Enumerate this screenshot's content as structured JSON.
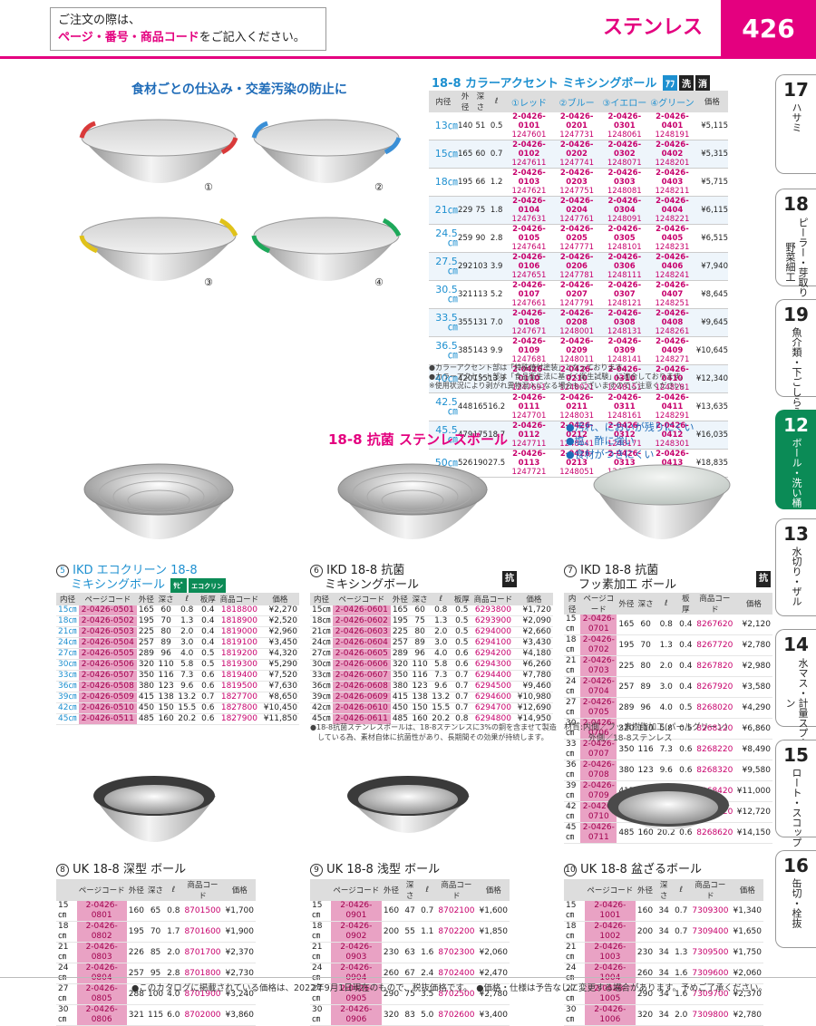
{
  "header": {
    "notice_line1": "ご注文の際は、",
    "notice_line2_red": "ページ・番号・商品コード",
    "notice_line2_rest": "をご記入ください。",
    "category": "ステンレス",
    "page_number": "426"
  },
  "side_tabs": [
    {
      "num": "17",
      "label": "ハサミ"
    },
    {
      "num": "18",
      "label": "ピーラー・芽取り・野菜細工"
    },
    {
      "num": "19",
      "label": "魚介類・下ごしらえ"
    },
    {
      "num": "12",
      "label": "ボール・洗い桶"
    },
    {
      "num": "13",
      "label": "水切り・ザル"
    },
    {
      "num": "14",
      "label": "水マス・計量スプーン"
    },
    {
      "num": "15",
      "label": "ロート・スコップ"
    },
    {
      "num": "16",
      "label": "缶切・栓抜"
    }
  ],
  "section1": {
    "tagline": "食材ごとの仕込み・交差汚染の防止に",
    "title": "18-8 カラーアクセント ミキシングボール",
    "badges": [
      "ｱﾌ",
      "洗",
      "消"
    ],
    "bowl_labels": [
      "①",
      "②",
      "③",
      "④"
    ],
    "accent_colors": [
      "#d93a3a",
      "#3a8fd6",
      "#e0c21a",
      "#1ea85a"
    ],
    "headers": [
      "内径",
      "外径",
      "深さ",
      "ℓ",
      "①レッド",
      "②ブルー",
      "③イエロー",
      "④グリーン",
      "価格"
    ],
    "rows": [
      {
        "size": "13㎝",
        "outer": "140",
        "depth": "51",
        "vol": "0.5",
        "c": [
          [
            "2-0426-0101",
            "1247601"
          ],
          [
            "2-0426-0201",
            "1247731"
          ],
          [
            "2-0426-0301",
            "1248061"
          ],
          [
            "2-0426-0401",
            "1248191"
          ]
        ],
        "price": "¥5,115"
      },
      {
        "size": "15㎝",
        "outer": "165",
        "depth": "60",
        "vol": "0.7",
        "c": [
          [
            "2-0426-0102",
            "1247611"
          ],
          [
            "2-0426-0202",
            "1247741"
          ],
          [
            "2-0426-0302",
            "1248071"
          ],
          [
            "2-0426-0402",
            "1248201"
          ]
        ],
        "price": "¥5,315"
      },
      {
        "size": "18㎝",
        "outer": "195",
        "depth": "66",
        "vol": "1.2",
        "c": [
          [
            "2-0426-0103",
            "1247621"
          ],
          [
            "2-0426-0203",
            "1247751"
          ],
          [
            "2-0426-0303",
            "1248081"
          ],
          [
            "2-0426-0403",
            "1248211"
          ]
        ],
        "price": "¥5,715"
      },
      {
        "size": "21㎝",
        "outer": "229",
        "depth": "75",
        "vol": "1.8",
        "c": [
          [
            "2-0426-0104",
            "1247631"
          ],
          [
            "2-0426-0204",
            "1247761"
          ],
          [
            "2-0426-0304",
            "1248091"
          ],
          [
            "2-0426-0404",
            "1248221"
          ]
        ],
        "price": "¥6,115"
      },
      {
        "size": "24.5㎝",
        "outer": "259",
        "depth": "90",
        "vol": "2.8",
        "c": [
          [
            "2-0426-0105",
            "1247641"
          ],
          [
            "2-0426-0205",
            "1247771"
          ],
          [
            "2-0426-0305",
            "1248101"
          ],
          [
            "2-0426-0405",
            "1248231"
          ]
        ],
        "price": "¥6,515"
      },
      {
        "size": "27.5㎝",
        "outer": "292",
        "depth": "103",
        "vol": "3.9",
        "c": [
          [
            "2-0426-0106",
            "1247651"
          ],
          [
            "2-0426-0206",
            "1247781"
          ],
          [
            "2-0426-0306",
            "1248111"
          ],
          [
            "2-0426-0406",
            "1248241"
          ]
        ],
        "price": "¥7,940"
      },
      {
        "size": "30.5㎝",
        "outer": "321",
        "depth": "113",
        "vol": "5.2",
        "c": [
          [
            "2-0426-0107",
            "1247661"
          ],
          [
            "2-0426-0207",
            "1247791"
          ],
          [
            "2-0426-0307",
            "1248121"
          ],
          [
            "2-0426-0407",
            "1248251"
          ]
        ],
        "price": "¥8,645"
      },
      {
        "size": "33.5㎝",
        "outer": "355",
        "depth": "131",
        "vol": "7.0",
        "c": [
          [
            "2-0426-0108",
            "1247671"
          ],
          [
            "2-0426-0208",
            "1248001"
          ],
          [
            "2-0426-0308",
            "1248131"
          ],
          [
            "2-0426-0408",
            "1248261"
          ]
        ],
        "price": "¥9,645"
      },
      {
        "size": "36.5㎝",
        "outer": "385",
        "depth": "143",
        "vol": "9.9",
        "c": [
          [
            "2-0426-0109",
            "1247681"
          ],
          [
            "2-0426-0209",
            "1248011"
          ],
          [
            "2-0426-0309",
            "1248141"
          ],
          [
            "2-0426-0409",
            "1248271"
          ]
        ],
        "price": "¥10,645"
      },
      {
        "size": "40㎝",
        "outer": "420",
        "depth": "155",
        "vol": "13.3",
        "c": [
          [
            "2-0426-0110",
            "1247691"
          ],
          [
            "2-0426-0210",
            "1248021"
          ],
          [
            "2-0426-0310",
            "1248151"
          ],
          [
            "2-0426-0410",
            "1248281"
          ]
        ],
        "price": "¥12,340"
      },
      {
        "size": "42.5㎝",
        "outer": "448",
        "depth": "165",
        "vol": "16.2",
        "c": [
          [
            "2-0426-0111",
            "1247701"
          ],
          [
            "2-0426-0211",
            "1248031"
          ],
          [
            "2-0426-0311",
            "1248161"
          ],
          [
            "2-0426-0411",
            "1248291"
          ]
        ],
        "price": "¥13,635"
      },
      {
        "size": "45.5㎝",
        "outer": "479",
        "depth": "175",
        "vol": "18.7",
        "c": [
          [
            "2-0426-0112",
            "1247711"
          ],
          [
            "2-0426-0212",
            "1248041"
          ],
          [
            "2-0426-0312",
            "1248171"
          ],
          [
            "2-0426-0412",
            "1248301"
          ]
        ],
        "price": "¥16,035"
      },
      {
        "size": "50㎝",
        "outer": "526",
        "depth": "190",
        "vol": "27.5",
        "c": [
          [
            "2-0426-0113",
            "1247721"
          ],
          [
            "2-0426-0213",
            "1248051"
          ],
          [
            "2-0426-0313",
            "1248181"
          ],
          [
            "2-0426-0413",
            "1248311"
          ]
        ],
        "price": "¥18,835"
      }
    ],
    "notes": [
      "●カラーアクセント部は「特殊焼付塗装」となっております。",
      "●カラーアクセント部は「食品衛生法に基づく衛生試験」に適合しております。",
      "※使用状況により剥がれ異物混入になる場合もございますのでご注意ください。"
    ]
  },
  "section2": {
    "title": "18-8 抗菌 ステンレスボール",
    "bullets": [
      "●汚れ、においが残りにくい",
      "●塩、酢に強い",
      "●食材がつきにくい"
    ]
  },
  "products": {
    "p5": {
      "num": "5",
      "title1": "IKD エコクリーン 18-8",
      "title2": "ミキシングボール",
      "badges": [
        "ｻﾋﾞ",
        "エコクリン"
      ],
      "headers": [
        "内径",
        "ページコード",
        "外径",
        "深さ",
        "ℓ",
        "板厚",
        "商品コード",
        "価格"
      ],
      "rows": [
        [
          "15㎝",
          "2-0426-0501",
          "165",
          "60",
          "0.8",
          "0.4",
          "1818800",
          "¥2,270"
        ],
        [
          "18㎝",
          "2-0426-0502",
          "195",
          "70",
          "1.3",
          "0.4",
          "1818900",
          "¥2,520"
        ],
        [
          "21㎝",
          "2-0426-0503",
          "225",
          "80",
          "2.0",
          "0.4",
          "1819000",
          "¥2,960"
        ],
        [
          "24㎝",
          "2-0426-0504",
          "257",
          "89",
          "3.0",
          "0.4",
          "1819100",
          "¥3,450"
        ],
        [
          "27㎝",
          "2-0426-0505",
          "289",
          "96",
          "4.0",
          "0.5",
          "1819200",
          "¥4,320"
        ],
        [
          "30㎝",
          "2-0426-0506",
          "320",
          "110",
          "5.8",
          "0.5",
          "1819300",
          "¥5,290"
        ],
        [
          "33㎝",
          "2-0426-0507",
          "350",
          "116",
          "7.3",
          "0.6",
          "1819400",
          "¥7,520"
        ],
        [
          "36㎝",
          "2-0426-0508",
          "380",
          "123",
          "9.6",
          "0.6",
          "1819500",
          "¥7,630"
        ],
        [
          "39㎝",
          "2-0426-0509",
          "415",
          "138",
          "13.2",
          "0.7",
          "1827700",
          "¥8,650"
        ],
        [
          "42㎝",
          "2-0426-0510",
          "450",
          "150",
          "15.5",
          "0.6",
          "1827800",
          "¥10,450"
        ],
        [
          "45㎝",
          "2-0426-0511",
          "485",
          "160",
          "20.2",
          "0.6",
          "1827900",
          "¥11,850"
        ]
      ]
    },
    "p6": {
      "num": "6",
      "title1": "IKD 18-8 抗菌",
      "title2": "ミキシングボール",
      "badges": [
        "抗"
      ],
      "headers": [
        "内径",
        "ページコード",
        "外径",
        "深さ",
        "ℓ",
        "板厚",
        "商品コード",
        "価格"
      ],
      "rows": [
        [
          "15㎝",
          "2-0426-0601",
          "165",
          "60",
          "0.8",
          "0.5",
          "6293800",
          "¥1,720"
        ],
        [
          "18㎝",
          "2-0426-0602",
          "195",
          "75",
          "1.3",
          "0.5",
          "6293900",
          "¥2,090"
        ],
        [
          "21㎝",
          "2-0426-0603",
          "225",
          "80",
          "2.0",
          "0.5",
          "6294000",
          "¥2,660"
        ],
        [
          "24㎝",
          "2-0426-0604",
          "257",
          "89",
          "3.0",
          "0.5",
          "6294100",
          "¥3,430"
        ],
        [
          "27㎝",
          "2-0426-0605",
          "289",
          "96",
          "4.0",
          "0.6",
          "6294200",
          "¥4,180"
        ],
        [
          "30㎝",
          "2-0426-0606",
          "320",
          "110",
          "5.8",
          "0.6",
          "6294300",
          "¥6,260"
        ],
        [
          "33㎝",
          "2-0426-0607",
          "350",
          "116",
          "7.3",
          "0.7",
          "6294400",
          "¥7,780"
        ],
        [
          "36㎝",
          "2-0426-0608",
          "380",
          "123",
          "9.6",
          "0.7",
          "6294500",
          "¥9,460"
        ],
        [
          "39㎝",
          "2-0426-0609",
          "415",
          "138",
          "13.2",
          "0.7",
          "6294600",
          "¥10,980"
        ],
        [
          "42㎝",
          "2-0426-0610",
          "450",
          "150",
          "15.5",
          "0.7",
          "6294700",
          "¥12,690"
        ],
        [
          "45㎝",
          "2-0426-0611",
          "485",
          "160",
          "20.2",
          "0.8",
          "6294800",
          "¥14,950"
        ]
      ],
      "note1": "●18-8抗菌ステンレスボールは、18-8ステンレスに3%の銅を含ませて製造",
      "note2": "　している為、素材自体に抗菌性があり、長期間その効果が持続します。"
    },
    "p7": {
      "num": "7",
      "title1": "IKD 18-8 抗菌",
      "title2": "フッ素加工 ボール",
      "badges": [
        "抗"
      ],
      "headers": [
        "内径",
        "ページコード",
        "外径",
        "深さ",
        "ℓ",
        "板厚",
        "商品コード",
        "価格"
      ],
      "rows": [
        [
          "15㎝",
          "2-0426-0701",
          "165",
          "60",
          "0.8",
          "0.4",
          "8267620",
          "¥2,120"
        ],
        [
          "18㎝",
          "2-0426-0702",
          "195",
          "70",
          "1.3",
          "0.4",
          "8267720",
          "¥2,780"
        ],
        [
          "21㎝",
          "2-0426-0703",
          "225",
          "80",
          "2.0",
          "0.4",
          "8267820",
          "¥2,980"
        ],
        [
          "24㎝",
          "2-0426-0704",
          "257",
          "89",
          "3.0",
          "0.4",
          "8267920",
          "¥3,580"
        ],
        [
          "27㎝",
          "2-0426-0705",
          "289",
          "96",
          "4.0",
          "0.5",
          "8268020",
          "¥4,290"
        ],
        [
          "30㎝",
          "2-0426-0706",
          "320",
          "110",
          "5.8",
          "0.5",
          "8268120",
          "¥6,860"
        ],
        [
          "33㎝",
          "2-0426-0707",
          "350",
          "116",
          "7.3",
          "0.6",
          "8268220",
          "¥8,490"
        ],
        [
          "36㎝",
          "2-0426-0708",
          "380",
          "123",
          "9.6",
          "0.6",
          "8268320",
          "¥9,580"
        ],
        [
          "39㎝",
          "2-0426-0709",
          "415",
          "138",
          "13.2",
          "0.6",
          "8268420",
          "¥11,000"
        ],
        [
          "42㎝",
          "2-0426-0710",
          "450",
          "150",
          "15.5",
          "0.6",
          "8268520",
          "¥12,720"
        ],
        [
          "45㎝",
          "2-0426-0711",
          "485",
          "160",
          "20.2",
          "0.6",
          "8268620",
          "¥14,150"
        ]
      ],
      "note1": "材質:内側／フッ素樹脂加工(パールグリーン)",
      "note2": "　　　外側／18-8ステンレス"
    },
    "p8": {
      "num": "8",
      "title": "UK 18-8 深型 ボール",
      "headers": [
        "",
        "ページコード",
        "外径",
        "深さ",
        "ℓ",
        "商品コード",
        "価格"
      ],
      "rows": [
        [
          "15㎝",
          "2-0426-0801",
          "160",
          "65",
          "0.8",
          "8701500",
          "¥1,700"
        ],
        [
          "18㎝",
          "2-0426-0802",
          "195",
          "70",
          "1.7",
          "8701600",
          "¥1,900"
        ],
        [
          "21㎝",
          "2-0426-0803",
          "226",
          "85",
          "2.0",
          "8701700",
          "¥2,370"
        ],
        [
          "24㎝",
          "2-0426-0804",
          "257",
          "95",
          "2.8",
          "8701800",
          "¥2,730"
        ],
        [
          "27㎝",
          "2-0426-0805",
          "288",
          "100",
          "4.0",
          "8701900",
          "¥3,240"
        ],
        [
          "30㎝",
          "2-0426-0806",
          "321",
          "115",
          "6.0",
          "8702000",
          "¥3,860"
        ]
      ]
    },
    "p9": {
      "num": "9",
      "title": "UK 18-8 浅型 ボール",
      "headers": [
        "",
        "ページコード",
        "外径",
        "深さ",
        "ℓ",
        "商品コード",
        "価格"
      ],
      "rows": [
        [
          "15㎝",
          "2-0426-0901",
          "160",
          "47",
          "0.7",
          "8702100",
          "¥1,600"
        ],
        [
          "18㎝",
          "2-0426-0902",
          "200",
          "55",
          "1.1",
          "8702200",
          "¥1,850"
        ],
        [
          "21㎝",
          "2-0426-0903",
          "230",
          "63",
          "1.6",
          "8702300",
          "¥2,060"
        ],
        [
          "24㎝",
          "2-0426-0904",
          "260",
          "67",
          "2.4",
          "8702400",
          "¥2,470"
        ],
        [
          "27㎝",
          "2-0426-0905",
          "290",
          "75",
          "3.5",
          "8702500",
          "¥2,780"
        ],
        [
          "30㎝",
          "2-0426-0906",
          "320",
          "83",
          "5.0",
          "8702600",
          "¥3,400"
        ]
      ]
    },
    "p10": {
      "num": "10",
      "title": "UK 18-8 盆ざるボール",
      "headers": [
        "",
        "ページコード",
        "外径",
        "深さ",
        "ℓ",
        "商品コード",
        "価格"
      ],
      "rows": [
        [
          "15㎝",
          "2-0426-1001",
          "160",
          "34",
          "0.7",
          "7309300",
          "¥1,340"
        ],
        [
          "18㎝",
          "2-0426-1002",
          "200",
          "34",
          "0.7",
          "7309400",
          "¥1,650"
        ],
        [
          "21㎝",
          "2-0426-1003",
          "230",
          "34",
          "1.3",
          "7309500",
          "¥1,750"
        ],
        [
          "24㎝",
          "2-0426-1004",
          "260",
          "34",
          "1.6",
          "7309600",
          "¥2,060"
        ],
        [
          "27㎝",
          "2-0426-1005",
          "290",
          "34",
          "1.6",
          "7309700",
          "¥2,370"
        ],
        [
          "30㎝",
          "2-0426-1006",
          "320",
          "34",
          "2.0",
          "7309800",
          "¥2,780"
        ]
      ]
    }
  },
  "footer": {
    "text": "●このカタログに掲載されている価格は、2022年9月1日現在のもので、税抜価格です。　●価格・仕様は予告なしに変更する場合があります。予めご了承ください。"
  }
}
